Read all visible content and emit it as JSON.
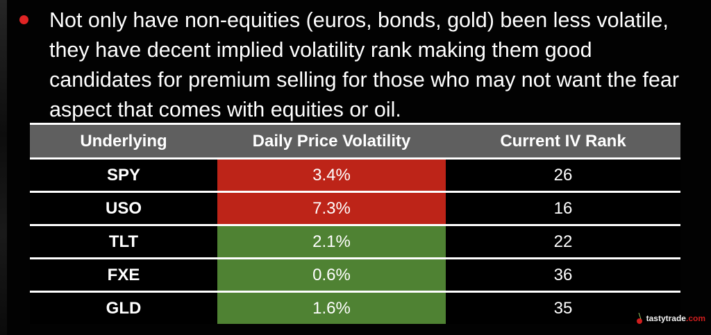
{
  "bullet": {
    "text": "Not only have non-equities (euros, bonds, gold) been less volatile, they have decent implied volatility rank making them good candidates for premium selling for those who may not want the fear aspect that comes with equities or oil."
  },
  "colors": {
    "bullet": "#e02424",
    "header_bg": "#5f5f5f",
    "high_volatility": "#bd2418",
    "low_volatility": "#4f8233"
  },
  "table": {
    "headers": [
      "Underlying",
      "Daily Price Volatility",
      "Current IV Rank"
    ],
    "rows": [
      {
        "underlying": "SPY",
        "volatility": "3.4%",
        "iv_rank": "26",
        "status": "red"
      },
      {
        "underlying": "USO",
        "volatility": "7.3%",
        "iv_rank": "16",
        "status": "red"
      },
      {
        "underlying": "TLT",
        "volatility": "2.1%",
        "iv_rank": "22",
        "status": "green"
      },
      {
        "underlying": "FXE",
        "volatility": "0.6%",
        "iv_rank": "36",
        "status": "green"
      },
      {
        "underlying": "GLD",
        "volatility": "1.6%",
        "iv_rank": "35",
        "status": "green"
      }
    ]
  },
  "logo": {
    "name": "tastytrade",
    "suffix": ".com",
    "icon": "cherry-icon"
  }
}
